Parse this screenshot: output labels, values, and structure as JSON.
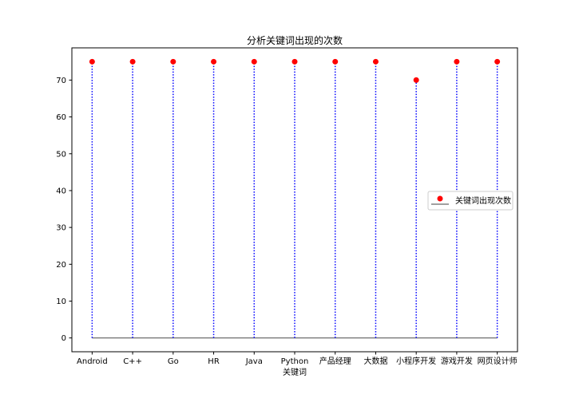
{
  "chart_data": {
    "type": "stem",
    "title": "分析关键词出现的次数",
    "xlabel": "关键词",
    "ylabel": "",
    "categories": [
      "Android",
      "C++",
      "Go",
      "HR",
      "Java",
      "Python",
      "产品经理",
      "大数据",
      "小程序开发",
      "游戏开发",
      "网页设计师"
    ],
    "values": [
      75,
      75,
      75,
      75,
      75,
      75,
      75,
      75,
      70,
      75,
      75
    ],
    "ylim": [
      -3.75,
      78.75
    ],
    "yticks": [
      0,
      10,
      20,
      30,
      40,
      50,
      60,
      70
    ],
    "grid": false,
    "legend": {
      "position": "center-right",
      "label": "关键词出现次数"
    },
    "colors": {
      "marker": "#ff0000",
      "stem": "#0000ff",
      "baseline": "#808080"
    }
  }
}
